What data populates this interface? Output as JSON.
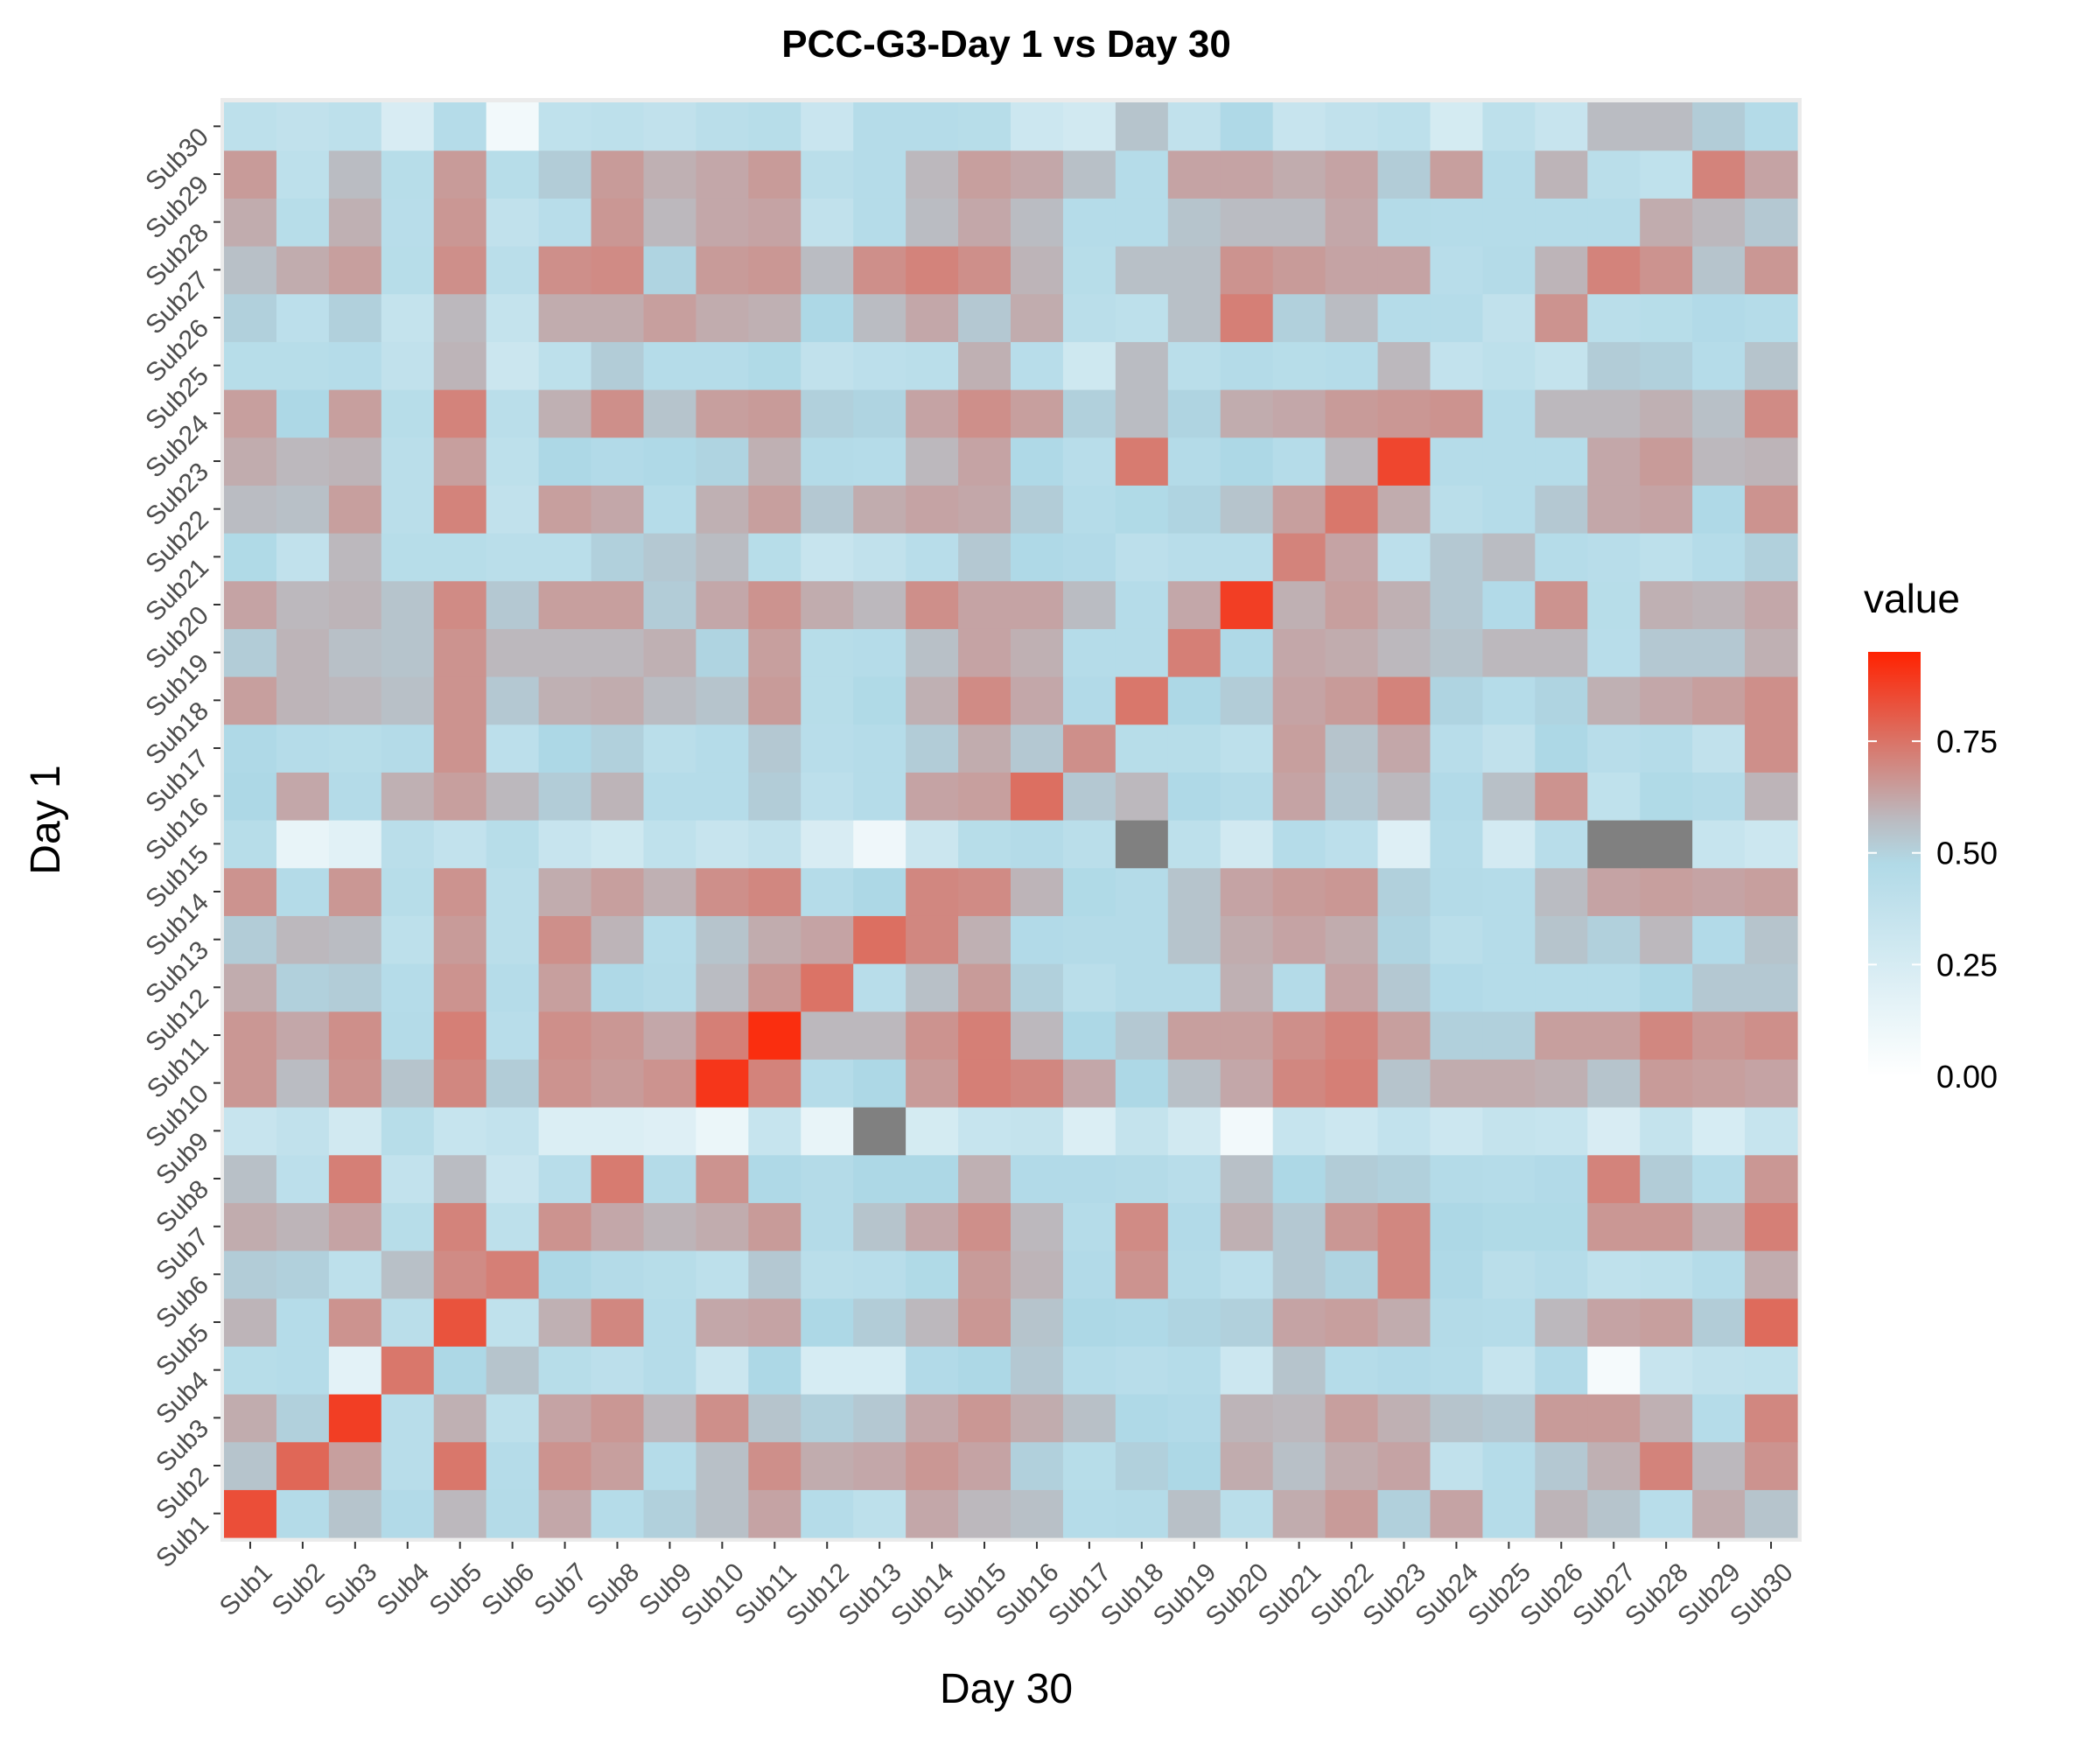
{
  "chart_data": {
    "type": "heatmap",
    "title": "PCC-G3-Day 1 vs Day 30",
    "xlabel": "Day 30",
    "ylabel": "Day 1",
    "x_categories": [
      "Sub1",
      "Sub2",
      "Sub3",
      "Sub4",
      "Sub5",
      "Sub6",
      "Sub7",
      "Sub8",
      "Sub9",
      "Sub10",
      "Sub11",
      "Sub12",
      "Sub13",
      "Sub14",
      "Sub15",
      "Sub16",
      "Sub17",
      "Sub18",
      "Sub19",
      "Sub20",
      "Sub21",
      "Sub22",
      "Sub23",
      "Sub24",
      "Sub25",
      "Sub26",
      "Sub27",
      "Sub28",
      "Sub29",
      "Sub30"
    ],
    "y_categories": [
      "Sub1",
      "Sub2",
      "Sub3",
      "Sub4",
      "Sub5",
      "Sub6",
      "Sub7",
      "Sub8",
      "Sub9",
      "Sub10",
      "Sub11",
      "Sub12",
      "Sub13",
      "Sub14",
      "Sub15",
      "Sub16",
      "Sub17",
      "Sub18",
      "Sub19",
      "Sub20",
      "Sub21",
      "Sub22",
      "Sub23",
      "Sub24",
      "Sub25",
      "Sub26",
      "Sub27",
      "Sub28",
      "Sub29",
      "Sub30"
    ],
    "legend": {
      "title": "value",
      "ticks": [
        "0.00",
        "0.25",
        "0.50",
        "0.75"
      ],
      "tick_values": [
        0,
        0.25,
        0.5,
        0.75
      ],
      "range": [
        0,
        0.95
      ],
      "colors": {
        "low": "#ffffff",
        "mid": "#add8e6",
        "high": "#ff2200",
        "na": "#808080"
      },
      "placement": "right"
    },
    "values": [
      [
        0.84,
        0.46,
        0.55,
        0.47,
        0.58,
        0.46,
        0.62,
        0.45,
        0.52,
        0.56,
        0.63,
        0.45,
        0.4,
        0.62,
        0.58,
        0.56,
        0.45,
        0.46,
        0.56,
        0.42,
        0.61,
        0.65,
        0.52,
        0.63,
        0.45,
        0.59,
        0.55,
        0.43,
        0.61,
        0.55
      ],
      [
        0.55,
        0.78,
        0.64,
        0.43,
        0.74,
        0.45,
        0.67,
        0.64,
        0.45,
        0.56,
        0.68,
        0.61,
        0.62,
        0.66,
        0.63,
        0.52,
        0.44,
        0.52,
        0.5,
        0.61,
        0.56,
        0.61,
        0.63,
        0.38,
        0.45,
        0.54,
        0.6,
        0.71,
        0.58,
        0.67
      ],
      [
        0.61,
        0.52,
        0.88,
        0.43,
        0.6,
        0.4,
        0.63,
        0.66,
        0.58,
        0.68,
        0.55,
        0.52,
        0.54,
        0.62,
        0.66,
        0.61,
        0.56,
        0.49,
        0.47,
        0.59,
        0.58,
        0.64,
        0.6,
        0.55,
        0.54,
        0.65,
        0.65,
        0.6,
        0.45,
        0.7
      ],
      [
        0.44,
        0.45,
        0.17,
        0.74,
        0.5,
        0.55,
        0.44,
        0.41,
        0.45,
        0.32,
        0.5,
        0.25,
        0.25,
        0.47,
        0.5,
        0.54,
        0.45,
        0.43,
        0.45,
        0.31,
        0.55,
        0.45,
        0.47,
        0.45,
        0.35,
        0.47,
        0.06,
        0.34,
        0.38,
        0.39
      ],
      [
        0.59,
        0.45,
        0.67,
        0.42,
        0.83,
        0.39,
        0.6,
        0.7,
        0.45,
        0.62,
        0.63,
        0.5,
        0.53,
        0.58,
        0.66,
        0.55,
        0.5,
        0.49,
        0.51,
        0.52,
        0.63,
        0.64,
        0.61,
        0.46,
        0.45,
        0.58,
        0.63,
        0.64,
        0.53,
        0.77
      ],
      [
        0.53,
        0.52,
        0.4,
        0.56,
        0.69,
        0.72,
        0.5,
        0.46,
        0.44,
        0.4,
        0.54,
        0.42,
        0.43,
        0.48,
        0.65,
        0.59,
        0.47,
        0.67,
        0.46,
        0.41,
        0.54,
        0.51,
        0.7,
        0.49,
        0.42,
        0.45,
        0.39,
        0.4,
        0.45,
        0.61
      ],
      [
        0.61,
        0.59,
        0.63,
        0.44,
        0.71,
        0.4,
        0.67,
        0.62,
        0.59,
        0.61,
        0.65,
        0.46,
        0.55,
        0.62,
        0.68,
        0.58,
        0.45,
        0.69,
        0.47,
        0.6,
        0.54,
        0.66,
        0.7,
        0.5,
        0.48,
        0.48,
        0.66,
        0.66,
        0.6,
        0.72
      ],
      [
        0.56,
        0.41,
        0.72,
        0.37,
        0.57,
        0.33,
        0.43,
        0.73,
        0.46,
        0.67,
        0.49,
        0.46,
        0.5,
        0.5,
        0.6,
        0.47,
        0.47,
        0.46,
        0.43,
        0.56,
        0.5,
        0.53,
        0.52,
        0.46,
        0.45,
        0.47,
        0.71,
        0.53,
        0.45,
        0.66
      ],
      [
        0.34,
        0.38,
        0.28,
        0.44,
        0.35,
        0.37,
        0.22,
        0.22,
        0.2,
        0.12,
        0.35,
        0.14,
        null,
        0.26,
        0.35,
        0.36,
        0.22,
        0.36,
        0.28,
        0.08,
        0.35,
        0.31,
        0.37,
        0.31,
        0.36,
        0.35,
        0.24,
        0.36,
        0.25,
        0.35
      ],
      [
        0.66,
        0.57,
        0.67,
        0.55,
        0.7,
        0.53,
        0.67,
        0.65,
        0.67,
        0.9,
        0.71,
        0.45,
        0.5,
        0.65,
        0.72,
        0.7,
        0.62,
        0.5,
        0.56,
        0.62,
        0.7,
        0.72,
        0.55,
        0.61,
        0.61,
        0.6,
        0.55,
        0.65,
        0.64,
        0.63
      ],
      [
        0.66,
        0.62,
        0.68,
        0.46,
        0.72,
        0.43,
        0.68,
        0.66,
        0.62,
        0.72,
        0.92,
        0.58,
        0.58,
        0.67,
        0.72,
        0.58,
        0.5,
        0.54,
        0.64,
        0.64,
        0.68,
        0.71,
        0.64,
        0.52,
        0.52,
        0.64,
        0.64,
        0.7,
        0.66,
        0.68
      ],
      [
        0.61,
        0.52,
        0.53,
        0.45,
        0.67,
        0.45,
        0.64,
        0.49,
        0.46,
        0.57,
        0.66,
        0.75,
        0.43,
        0.56,
        0.65,
        0.52,
        0.42,
        0.46,
        0.46,
        0.6,
        0.46,
        0.63,
        0.54,
        0.47,
        0.45,
        0.45,
        0.45,
        0.5,
        0.54,
        0.54
      ],
      [
        0.53,
        0.58,
        0.57,
        0.4,
        0.65,
        0.42,
        0.68,
        0.59,
        0.45,
        0.55,
        0.61,
        0.63,
        0.76,
        0.7,
        0.6,
        0.47,
        0.46,
        0.46,
        0.55,
        0.61,
        0.63,
        0.61,
        0.51,
        0.42,
        0.45,
        0.55,
        0.52,
        0.58,
        0.47,
        0.55
      ],
      [
        0.67,
        0.46,
        0.66,
        0.44,
        0.67,
        0.42,
        0.61,
        0.64,
        0.6,
        0.68,
        0.7,
        0.45,
        0.5,
        0.7,
        0.69,
        0.59,
        0.48,
        0.46,
        0.55,
        0.63,
        0.65,
        0.66,
        0.52,
        0.46,
        0.45,
        0.57,
        0.63,
        0.64,
        0.63,
        0.64
      ],
      [
        0.44,
        0.14,
        0.18,
        0.42,
        0.37,
        0.44,
        0.34,
        0.3,
        0.39,
        0.34,
        0.38,
        0.24,
        0.1,
        0.32,
        0.44,
        0.46,
        0.42,
        null,
        0.4,
        0.28,
        0.45,
        0.41,
        0.2,
        0.45,
        0.27,
        0.43,
        null,
        null,
        0.35,
        0.31
      ],
      [
        0.5,
        0.62,
        0.46,
        0.6,
        0.64,
        0.58,
        0.53,
        0.59,
        0.45,
        0.45,
        0.53,
        0.41,
        0.45,
        0.63,
        0.64,
        0.76,
        0.54,
        0.58,
        0.49,
        0.46,
        0.63,
        0.54,
        0.58,
        0.47,
        0.56,
        0.67,
        0.39,
        0.48,
        0.46,
        0.59
      ],
      [
        0.49,
        0.45,
        0.44,
        0.46,
        0.67,
        0.41,
        0.5,
        0.52,
        0.42,
        0.45,
        0.54,
        0.43,
        0.45,
        0.53,
        0.61,
        0.54,
        0.68,
        0.44,
        0.44,
        0.4,
        0.64,
        0.55,
        0.62,
        0.43,
        0.38,
        0.5,
        0.43,
        0.45,
        0.38,
        0.68
      ],
      [
        0.64,
        0.59,
        0.58,
        0.56,
        0.67,
        0.54,
        0.6,
        0.61,
        0.57,
        0.55,
        0.65,
        0.44,
        0.48,
        0.6,
        0.69,
        0.62,
        0.47,
        0.74,
        0.5,
        0.53,
        0.63,
        0.65,
        0.71,
        0.51,
        0.45,
        0.51,
        0.6,
        0.62,
        0.64,
        0.68
      ],
      [
        0.53,
        0.59,
        0.56,
        0.55,
        0.67,
        0.58,
        0.58,
        0.58,
        0.6,
        0.51,
        0.64,
        0.44,
        0.45,
        0.56,
        0.63,
        0.6,
        0.45,
        0.45,
        0.72,
        0.49,
        0.62,
        0.61,
        0.58,
        0.55,
        0.58,
        0.58,
        0.43,
        0.54,
        0.54,
        0.6
      ],
      [
        0.63,
        0.58,
        0.59,
        0.55,
        0.69,
        0.54,
        0.64,
        0.64,
        0.53,
        0.62,
        0.67,
        0.61,
        0.58,
        0.68,
        0.63,
        0.63,
        0.57,
        0.45,
        0.62,
        0.88,
        0.6,
        0.64,
        0.6,
        0.54,
        0.47,
        0.67,
        0.44,
        0.6,
        0.59,
        0.62
      ],
      [
        0.48,
        0.38,
        0.58,
        0.44,
        0.44,
        0.42,
        0.42,
        0.52,
        0.54,
        0.57,
        0.44,
        0.34,
        0.38,
        0.43,
        0.54,
        0.49,
        0.47,
        0.41,
        0.43,
        0.43,
        0.71,
        0.63,
        0.41,
        0.54,
        0.57,
        0.45,
        0.43,
        0.4,
        0.45,
        0.52
      ],
      [
        0.57,
        0.56,
        0.64,
        0.42,
        0.71,
        0.38,
        0.64,
        0.62,
        0.45,
        0.6,
        0.64,
        0.54,
        0.61,
        0.63,
        0.62,
        0.53,
        0.45,
        0.48,
        0.51,
        0.55,
        0.64,
        0.74,
        0.61,
        0.42,
        0.45,
        0.54,
        0.62,
        0.63,
        0.49,
        0.67
      ],
      [
        0.61,
        0.58,
        0.59,
        0.42,
        0.64,
        0.4,
        0.5,
        0.47,
        0.49,
        0.51,
        0.6,
        0.46,
        0.45,
        0.58,
        0.63,
        0.49,
        0.43,
        0.73,
        0.46,
        0.5,
        0.45,
        0.58,
        0.86,
        0.45,
        0.45,
        0.45,
        0.62,
        0.65,
        0.58,
        0.59
      ],
      [
        0.64,
        0.5,
        0.64,
        0.44,
        0.71,
        0.42,
        0.6,
        0.68,
        0.55,
        0.64,
        0.65,
        0.52,
        0.51,
        0.63,
        0.68,
        0.64,
        0.52,
        0.57,
        0.51,
        0.61,
        0.62,
        0.65,
        0.66,
        0.67,
        0.45,
        0.58,
        0.58,
        0.6,
        0.56,
        0.69
      ],
      [
        0.44,
        0.44,
        0.45,
        0.38,
        0.59,
        0.32,
        0.4,
        0.53,
        0.45,
        0.45,
        0.48,
        0.38,
        0.41,
        0.42,
        0.6,
        0.43,
        0.3,
        0.57,
        0.42,
        0.46,
        0.44,
        0.45,
        0.58,
        0.37,
        0.4,
        0.36,
        0.53,
        0.52,
        0.45,
        0.55
      ],
      [
        0.52,
        0.41,
        0.52,
        0.36,
        0.58,
        0.36,
        0.61,
        0.61,
        0.64,
        0.61,
        0.6,
        0.5,
        0.57,
        0.62,
        0.54,
        0.61,
        0.42,
        0.4,
        0.56,
        0.72,
        0.52,
        0.57,
        0.45,
        0.45,
        0.38,
        0.67,
        0.42,
        0.44,
        0.47,
        0.45
      ],
      [
        0.56,
        0.61,
        0.64,
        0.44,
        0.68,
        0.42,
        0.68,
        0.69,
        0.51,
        0.65,
        0.66,
        0.57,
        0.68,
        0.71,
        0.68,
        0.59,
        0.44,
        0.56,
        0.56,
        0.67,
        0.65,
        0.63,
        0.63,
        0.43,
        0.46,
        0.59,
        0.71,
        0.67,
        0.55,
        0.66
      ],
      [
        0.61,
        0.44,
        0.6,
        0.43,
        0.66,
        0.38,
        0.43,
        0.66,
        0.58,
        0.62,
        0.63,
        0.38,
        0.45,
        0.57,
        0.62,
        0.57,
        0.45,
        0.45,
        0.55,
        0.57,
        0.57,
        0.62,
        0.46,
        0.45,
        0.45,
        0.45,
        0.45,
        0.61,
        0.58,
        0.54
      ],
      [
        0.65,
        0.4,
        0.57,
        0.44,
        0.65,
        0.44,
        0.53,
        0.65,
        0.6,
        0.62,
        0.65,
        0.42,
        0.45,
        0.58,
        0.64,
        0.62,
        0.56,
        0.45,
        0.63,
        0.63,
        0.61,
        0.63,
        0.53,
        0.64,
        0.45,
        0.59,
        0.42,
        0.39,
        0.71,
        0.63
      ],
      [
        0.4,
        0.38,
        0.4,
        0.24,
        0.45,
        0.08,
        0.39,
        0.4,
        0.38,
        0.42,
        0.44,
        0.33,
        0.45,
        0.45,
        0.44,
        0.31,
        0.28,
        0.55,
        0.38,
        0.49,
        0.34,
        0.38,
        0.4,
        0.26,
        0.4,
        0.34,
        0.57,
        0.57,
        0.53,
        0.46
      ]
    ]
  }
}
